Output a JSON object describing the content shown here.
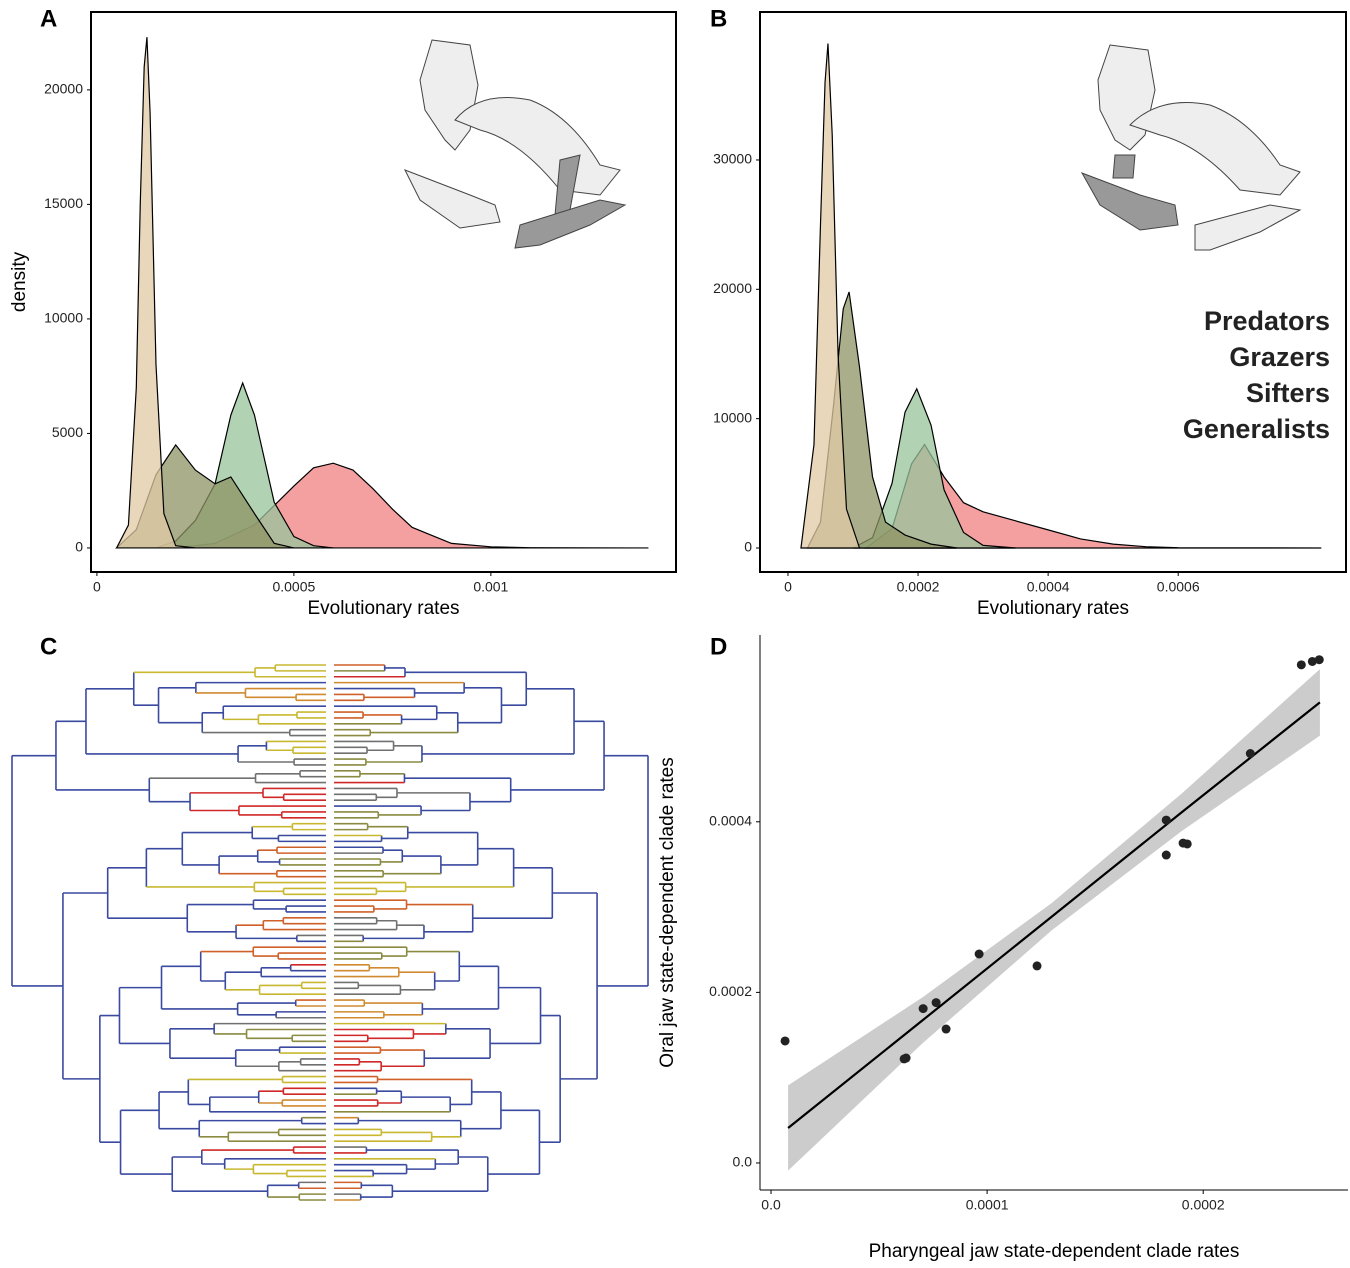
{
  "chart_data": [
    {
      "type": "density",
      "panel_label": "A",
      "x_label": "Evolutionary rates",
      "y_label": "density",
      "xlim": [
        -1.5e-05,
        0.00147
      ],
      "ylim": [
        -1050,
        23400
      ],
      "xticks": [
        0,
        0.0005,
        0.001
      ],
      "yticks": [
        0,
        5000,
        10000,
        15000,
        20000
      ],
      "series": [
        {
          "name": "Predators",
          "color": "#f08080",
          "x": [
            0.0002,
            0.0003,
            0.0004,
            0.0005,
            0.00055,
            0.0006,
            0.00065,
            0.0007,
            0.00075,
            0.0008,
            0.0009,
            0.001,
            0.0011,
            0.0014
          ],
          "values": [
            0,
            200,
            1000,
            2700,
            3500,
            3700,
            3400,
            2600,
            1700,
            900,
            200,
            50,
            10,
            0
          ]
        },
        {
          "name": "Grazers",
          "color": "#97c49b",
          "x": [
            0.00015,
            0.0002,
            0.00025,
            0.0003,
            0.00034,
            0.00037,
            0.0004,
            0.00045,
            0.0005,
            0.00055,
            0.0006
          ],
          "values": [
            0,
            300,
            1200,
            2800,
            5800,
            7200,
            5800,
            2000,
            500,
            100,
            0
          ]
        },
        {
          "name": "Sifters",
          "color": "#8e9363",
          "x": [
            5e-05,
            0.0001,
            0.00015,
            0.0002,
            0.00025,
            0.0003,
            0.00034,
            0.0004,
            0.00045,
            0.0005
          ],
          "values": [
            0,
            800,
            3200,
            4500,
            3400,
            2800,
            3100,
            1500,
            200,
            0
          ]
        },
        {
          "name": "Generalists",
          "color": "#e2c9a6",
          "x": [
            5e-05,
            8e-05,
            0.0001,
            0.00011,
            0.00012,
            0.000127,
            0.000135,
            0.00015,
            0.00017,
            0.0002,
            0.00025
          ],
          "values": [
            0,
            1000,
            7000,
            15000,
            21000,
            22300,
            19000,
            8000,
            1500,
            100,
            0
          ]
        }
      ]
    },
    {
      "type": "density",
      "panel_label": "B",
      "x_label": "Evolutionary rates",
      "xlim": [
        -4.3e-05,
        0.000858
      ],
      "ylim": [
        -1856,
        41440
      ],
      "xticks": [
        0,
        0.0002,
        0.0004,
        0.0006
      ],
      "yticks": [
        0,
        10000,
        20000,
        30000
      ],
      "legend": "right",
      "series": [
        {
          "name": "Predators",
          "color": "#f08080",
          "x": [
            0.00012,
            0.00016,
            0.00019,
            0.00021,
            0.00024,
            0.00027,
            0.0003,
            0.00035,
            0.0004,
            0.00045,
            0.0005,
            0.00055,
            0.0006,
            0.00082
          ],
          "values": [
            0,
            1500,
            6500,
            8000,
            5500,
            3500,
            2800,
            2100,
            1400,
            700,
            300,
            100,
            20,
            0
          ]
        },
        {
          "name": "Grazers",
          "color": "#97c49b",
          "x": [
            0.0001,
            0.00013,
            0.00016,
            0.00018,
            0.000198,
            0.00022,
            0.00024,
            0.00027,
            0.0003,
            0.00035
          ],
          "values": [
            0,
            800,
            5000,
            10500,
            12300,
            9500,
            4500,
            1200,
            200,
            0
          ]
        },
        {
          "name": "Sifters",
          "color": "#8e9363",
          "x": [
            3e-05,
            5e-05,
            7e-05,
            8.5e-05,
            9.4e-05,
            0.00011,
            0.00013,
            0.00015,
            0.00018,
            0.00022,
            0.00026
          ],
          "values": [
            0,
            2000,
            11000,
            18500,
            19800,
            14000,
            5500,
            2000,
            1000,
            300,
            0
          ]
        },
        {
          "name": "Generalists",
          "color": "#e2c9a6",
          "x": [
            2e-05,
            4e-05,
            5e-05,
            5.7e-05,
            6.15e-05,
            6.8e-05,
            7.7e-05,
            9e-05,
            0.00011
          ],
          "values": [
            0,
            8000,
            25000,
            36000,
            39000,
            32000,
            15000,
            3000,
            0
          ]
        }
      ]
    },
    {
      "type": "scatter",
      "panel_label": "D",
      "x_label": "Pharyngeal jaw state-dependent clade rates",
      "y_label": "Oral jaw state-dependent clade rates",
      "xlim": [
        -5.1e-06,
        0.000267
      ],
      "ylim": [
        -3.17e-05,
        0.000619
      ],
      "xticks": [
        {
          "value": 0,
          "label": "0.0"
        },
        0.0001,
        0.0002
      ],
      "yticks": [
        {
          "value": 0,
          "label": "0.0"
        },
        0.0002,
        0.0004
      ],
      "color": "#222222",
      "x": [
        6.5e-06,
        6.16e-05,
        6.25e-05,
        7.04e-05,
        7.64e-05,
        8.1e-05,
        9.63e-05,
        0.0001231,
        0.0001829,
        0.0001829,
        0.0001907,
        0.0001926,
        0.0002218,
        0.0002454,
        0.0002505,
        0.0002537
      ],
      "values": [
        0.000143,
        0.000122,
        0.000123,
        0.000181,
        0.000188,
        0.000157,
        0.000245,
        0.000231,
        0.000402,
        0.000361,
        0.000375,
        0.000374,
        0.00048,
        0.000584,
        0.000588,
        0.00059
      ],
      "fit": {
        "color": "#000000",
        "band_color": "#cccccc",
        "x": [
          7.9e-06,
          7e-05,
          0.00013,
          0.00019,
          0.000254
        ],
        "y": [
          4.1e-05,
          0.000167,
          0.000289,
          0.000411,
          0.00054
        ],
        "lower": [
          -9e-06,
          0.00014,
          0.000273,
          0.000389,
          0.000501
        ],
        "upper": [
          9.1e-05,
          0.000194,
          0.000305,
          0.000433,
          0.000579
        ]
      }
    }
  ],
  "tree": {
    "panel_label": "C"
  }
}
